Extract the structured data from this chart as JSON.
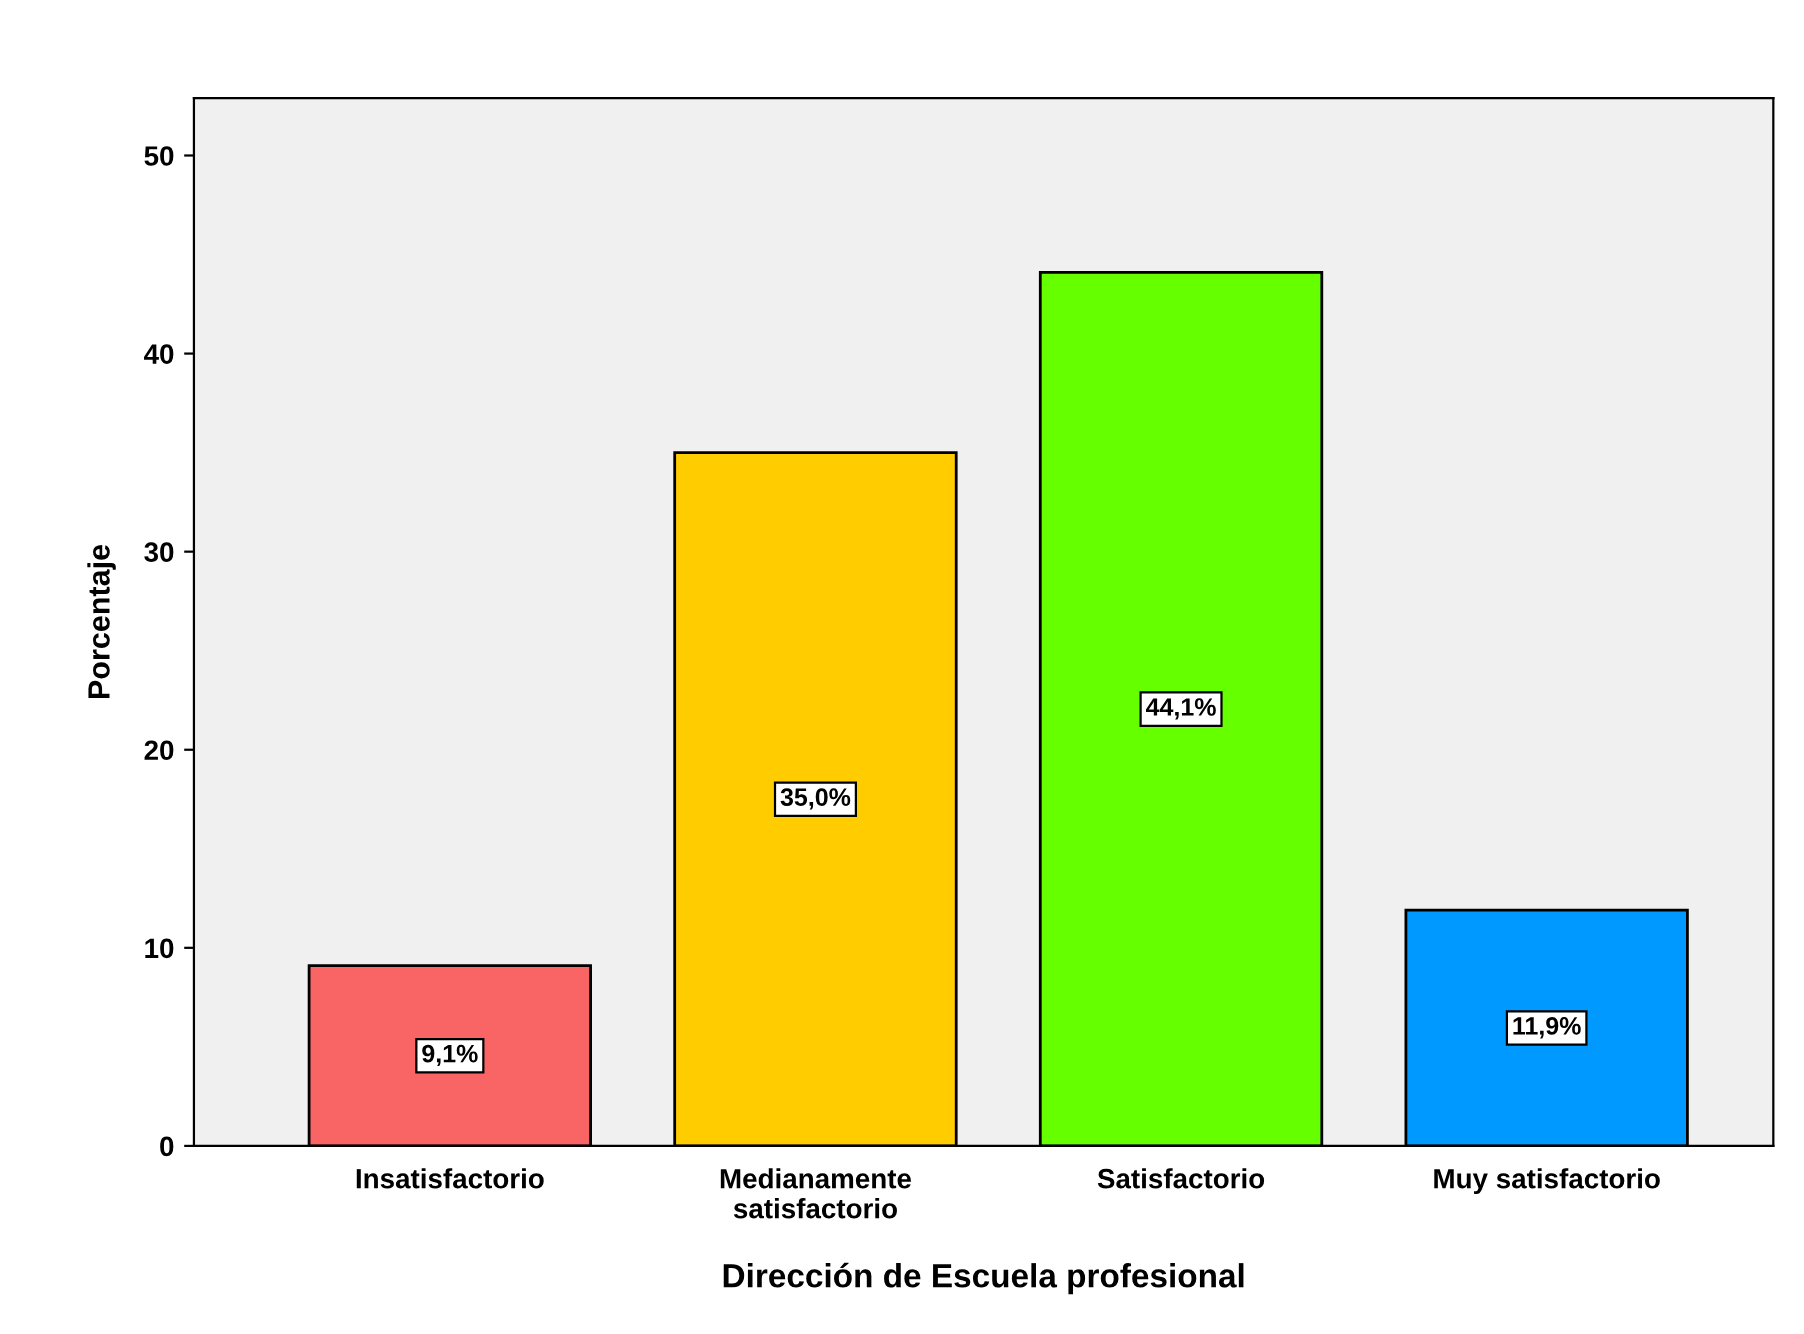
{
  "chart_data": {
    "type": "bar",
    "xlabel": "Dirección de Escuela profesional",
    "ylabel": "Porcentaje",
    "categories": [
      "Insatisfactorio",
      "Medianamente\nsatisfactorio",
      "Satisfactorio",
      "Muy satisfactorio"
    ],
    "values": [
      9.1,
      35.0,
      44.1,
      11.9
    ],
    "value_labels": [
      "9,1%",
      "35,0%",
      "44,1%",
      "11,9%"
    ],
    "colors": [
      "#f96464",
      "#ffcc00",
      "#66ff00",
      "#0099ff"
    ],
    "ylim": [
      0,
      52.9
    ],
    "yticks": [
      0,
      10,
      20,
      30,
      40,
      50
    ],
    "grid": false,
    "legend": false
  }
}
